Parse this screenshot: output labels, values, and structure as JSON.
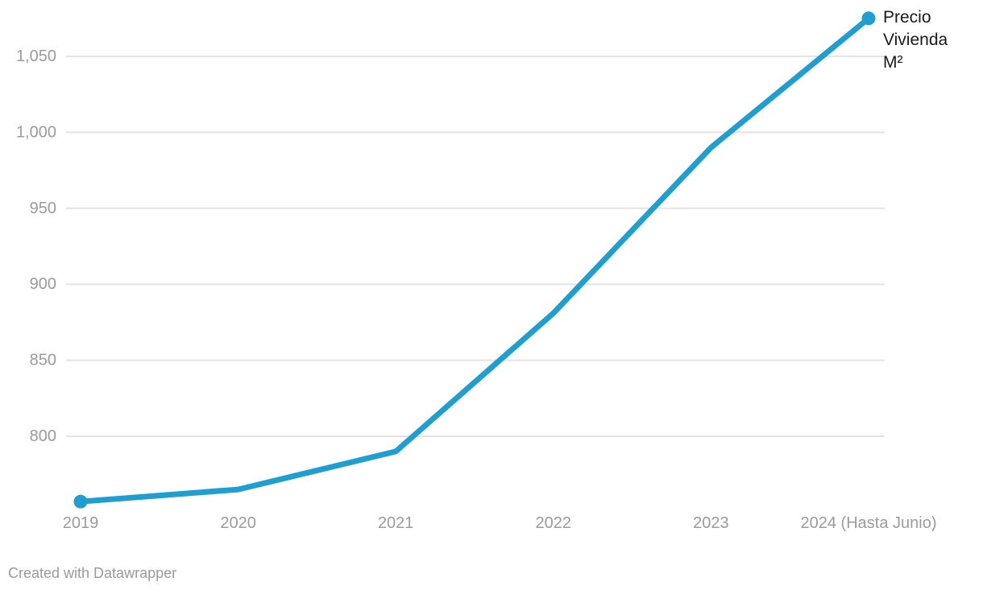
{
  "chart_data": {
    "type": "line",
    "title": "",
    "x": [
      "2019",
      "2020",
      "2021",
      "2022",
      "2023",
      "2024 (Hasta Junio)"
    ],
    "series": [
      {
        "name": "Precio Vivienda M²",
        "label": "Precio Vivienda M²",
        "values": [
          757,
          765,
          790,
          881,
          990,
          1075
        ]
      }
    ],
    "xlabel": "",
    "ylabel": "",
    "yticks": [
      800,
      850,
      900,
      950,
      1000,
      1050
    ],
    "ytick_labels": [
      "800",
      "850",
      "900",
      "950",
      "1,000",
      "1,050"
    ],
    "ylim": [
      752,
      1078
    ],
    "grid": true,
    "legend_position": "line-end-label",
    "markers": "first-and-last-point"
  },
  "footer": {
    "attribution": "Created with Datawrapper"
  },
  "colors": {
    "line": "#1e9fd0",
    "grid": "#e4e4e4",
    "axis_text": "#9b9b9b",
    "series_label_text": "#1a1a1a",
    "footer_text": "#9a9a9a",
    "background": "#ffffff"
  }
}
